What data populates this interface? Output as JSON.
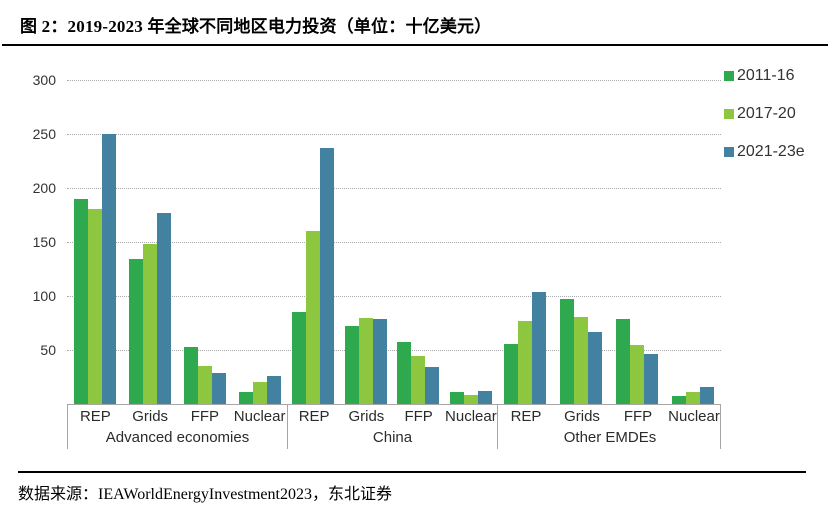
{
  "title": "图 2：2019-2023 年全球不同地区电力投资（单位：十亿美元）",
  "source": "数据来源：IEAWorldEnergyInvestment2023，东北证券",
  "colors": {
    "series_2011_16": "#2EA94E",
    "series_2017_20": "#8DC63F",
    "series_2021_23e": "#42819F",
    "gridline": "#a9a9a9",
    "axis_box_border": "#a6a6a6",
    "text": "#333333"
  },
  "chart_data": {
    "type": "bar",
    "title": "图 2：2019-2023 年全球不同地区电力投资（单位：十亿美元）",
    "unit": "十亿美元 (billion USD)",
    "groups": [
      {
        "label": "Advanced economies",
        "categories": [
          "REP",
          "Grids",
          "FFP",
          "Nuclear"
        ]
      },
      {
        "label": "China",
        "categories": [
          "REP",
          "Grids",
          "FFP",
          "Nuclear"
        ]
      },
      {
        "label": "Other EMDEs",
        "categories": [
          "REP",
          "Grids",
          "FFP",
          "Nuclear"
        ]
      }
    ],
    "series": [
      {
        "name": "2011-16",
        "color": "#2EA94E",
        "values": [
          190,
          134,
          53,
          11,
          85,
          72,
          57,
          11,
          56,
          97,
          79,
          7
        ]
      },
      {
        "name": "2017-20",
        "color": "#8DC63F",
        "values": [
          181,
          148,
          35,
          20,
          160,
          80,
          44,
          8,
          77,
          81,
          55,
          11
        ]
      },
      {
        "name": "2021-23e",
        "color": "#42819F",
        "values": [
          250,
          177,
          29,
          26,
          237,
          79,
          34,
          12,
          104,
          67,
          46,
          16
        ]
      }
    ],
    "ylim": [
      0,
      300
    ],
    "yticks": [
      50,
      100,
      150,
      200,
      250,
      300
    ],
    "grid": "horizontal dotted",
    "legend_position": "top-right"
  }
}
